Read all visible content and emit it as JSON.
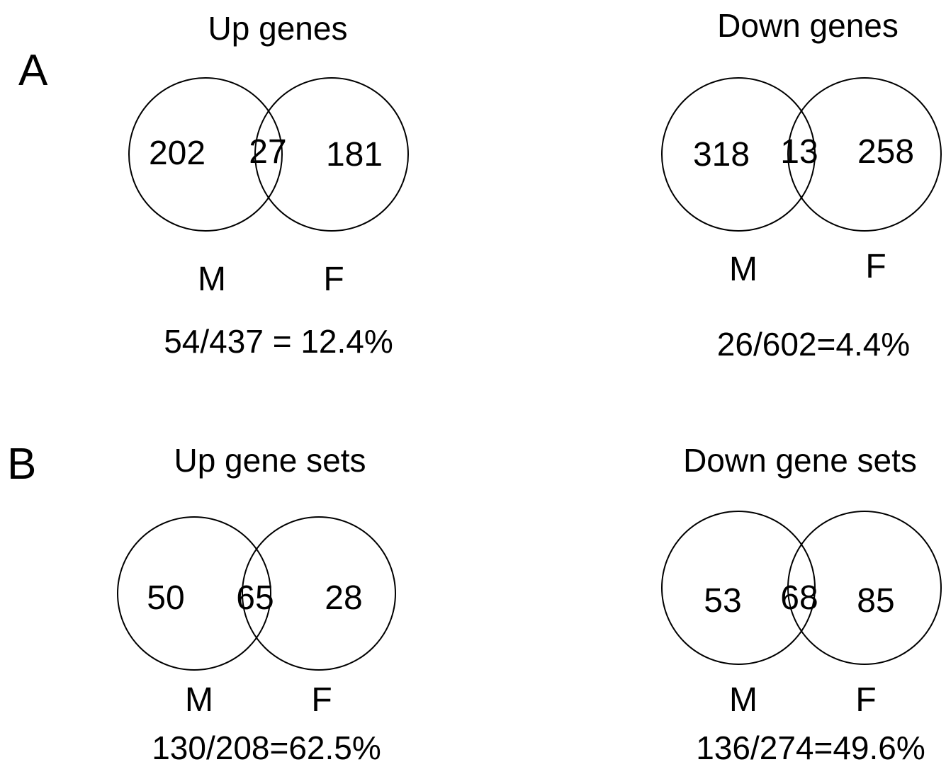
{
  "panels": {
    "A": {
      "letter": "A",
      "up": {
        "title": "Up genes",
        "m_only": "202",
        "overlap": "27",
        "f_only": "181",
        "m_label": "M",
        "f_label": "F",
        "ratio": "54/437 = 12.4%"
      },
      "down": {
        "title": "Down genes",
        "m_only": "318",
        "overlap": "13",
        "f_only": "258",
        "m_label": "M",
        "f_label": "F",
        "ratio": "26/602=4.4%"
      }
    },
    "B": {
      "letter": "B",
      "up": {
        "title": "Up gene sets",
        "m_only": "50",
        "overlap": "65",
        "f_only": "28",
        "m_label": "M",
        "f_label": "F",
        "ratio": "130/208=62.5%"
      },
      "down": {
        "title": "Down gene sets",
        "m_only": "53",
        "overlap": "68",
        "f_only": "85",
        "m_label": "M",
        "f_label": "F",
        "ratio": "136/274=49.6%"
      }
    }
  }
}
